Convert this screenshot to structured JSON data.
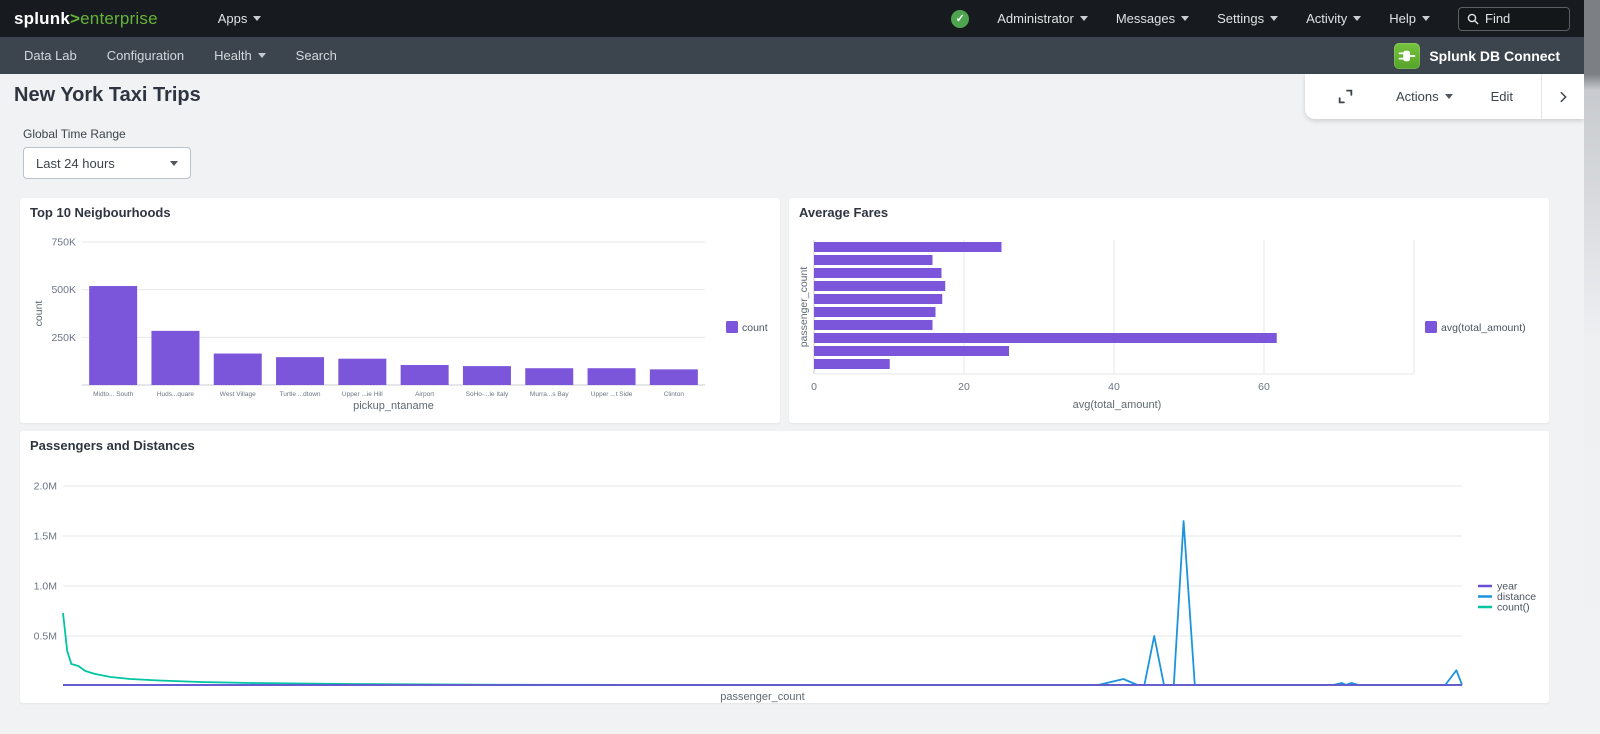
{
  "topnav": {
    "brand": {
      "name": "splunk",
      "gt": ">",
      "product": "enterprise"
    },
    "apps_label": "Apps",
    "menus": [
      {
        "label": "Administrator"
      },
      {
        "label": "Messages"
      },
      {
        "label": "Settings"
      },
      {
        "label": "Activity"
      },
      {
        "label": "Help"
      }
    ],
    "status_icon": "check-circle",
    "find_placeholder": "Find"
  },
  "appnav": {
    "items": [
      {
        "label": "Data Lab"
      },
      {
        "label": "Configuration"
      },
      {
        "label": "Health"
      },
      {
        "label": "Search"
      }
    ],
    "app_title": "Splunk DB Connect"
  },
  "toolbar": {
    "actions_label": "Actions",
    "edit_label": "Edit"
  },
  "page": {
    "title": "New York Taxi Trips",
    "time_range_label": "Global Time Range",
    "time_range_value": "Last 24 hours"
  },
  "colors": {
    "accent_purple": "#7b56db",
    "line_blue": "#1e93dd",
    "line_teal": "#00c5a2",
    "status_green": "#4ea44f",
    "brand_green": "#65b339",
    "topnav_bg": "#171a1e",
    "appnav_bg": "#3c444d",
    "page_bg": "#f0f2f4"
  },
  "chart_data": [
    {
      "type": "bar",
      "title": "Top 10 Neigbourhoods",
      "categories": [
        "Midto... South",
        "Huds...quare",
        "West Village",
        "Turtle ...dtown",
        "Upper ...ie Hill",
        "Airport",
        "SoHo-...le Italy",
        "Murra...s Bay",
        "Upper ...t Side",
        "Clinton"
      ],
      "values": [
        519000,
        284000,
        165000,
        146000,
        138000,
        105000,
        99000,
        88000,
        88000,
        82000
      ],
      "xlabel": "pickup_ntaname",
      "ylabel": "count",
      "ylim": [
        0,
        750000
      ],
      "yticks": [
        {
          "label": "750K",
          "value": 750000
        },
        {
          "label": "500K",
          "value": 500000
        },
        {
          "label": "250K",
          "value": 250000
        }
      ],
      "grid": "horizontal",
      "bar_color": "#7b56db",
      "legend": [
        {
          "label": "count",
          "color": "#7b56db"
        }
      ],
      "legend_position": "right"
    },
    {
      "type": "bar_horizontal",
      "title": "Average Fares",
      "values": [
        25,
        15.8,
        17,
        17.5,
        17.1,
        16.2,
        15.8,
        61.7,
        26,
        10.1
      ],
      "xlabel": "avg(total_amount)",
      "ylabel": "passenger_count",
      "xlim": [
        0,
        81
      ],
      "xticks": [
        {
          "label": "0",
          "value": 0
        },
        {
          "label": "20",
          "value": 20
        },
        {
          "label": "40",
          "value": 40
        },
        {
          "label": "60",
          "value": 60
        },
        {
          "label": "",
          "value": 80
        }
      ],
      "grid": "vertical",
      "bar_color": "#7b56db",
      "legend": [
        {
          "label": "avg(total_amount)",
          "color": "#7b56db"
        }
      ],
      "legend_position": "right"
    },
    {
      "type": "line",
      "title": "Passengers and Distances",
      "xlabel": "passenger_count",
      "x_axis_note": "x tick labels not shown; x given as percent of plot width",
      "ylim": [
        0,
        2000000
      ],
      "yticks": [
        {
          "label": "2.0M",
          "value": 2000000
        },
        {
          "label": "1.5M",
          "value": 1500000
        },
        {
          "label": "1.0M",
          "value": 1000000
        },
        {
          "label": "0.5M",
          "value": 500000
        }
      ],
      "grid": "horizontal",
      "legend": [
        {
          "label": "year",
          "color": "#6a50d0"
        },
        {
          "label": "distance",
          "color": "#1e93dd"
        },
        {
          "label": "count()",
          "color": "#00c5a2"
        }
      ],
      "legend_position": "right",
      "series": [
        {
          "name": "distance",
          "color": "#1e93dd",
          "points_pct": [
            [
              0,
              5000
            ],
            [
              74,
              5000
            ],
            [
              75.8,
              70000
            ],
            [
              76.8,
              5000
            ],
            [
              77.3,
              5000
            ],
            [
              78,
              500000
            ],
            [
              78.7,
              5000
            ],
            [
              79.4,
              5000
            ],
            [
              80.1,
              1650000
            ],
            [
              80.9,
              5000
            ],
            [
              90.8,
              5000
            ],
            [
              91.4,
              30000
            ],
            [
              91.7,
              12000
            ],
            [
              92.1,
              30000
            ],
            [
              92.6,
              5000
            ],
            [
              98.8,
              5000
            ],
            [
              99.6,
              157000
            ],
            [
              100,
              12000
            ]
          ]
        },
        {
          "name": "count()",
          "color": "#00c5a2",
          "points_pct": [
            [
              0,
              730000
            ],
            [
              0.3,
              350000
            ],
            [
              0.6,
              220000
            ],
            [
              1.1,
              200000
            ],
            [
              1.6,
              150000
            ],
            [
              2.3,
              120000
            ],
            [
              3.4,
              90000
            ],
            [
              4.8,
              70000
            ],
            [
              6.9,
              55000
            ],
            [
              9.8,
              40000
            ],
            [
              13.4,
              30000
            ],
            [
              20.5,
              20000
            ],
            [
              31.2,
              12000
            ],
            [
              52.7,
              6000
            ],
            [
              74,
              4000
            ],
            [
              100,
              3000
            ]
          ]
        },
        {
          "name": "year",
          "color": "#6a50d0",
          "points_pct": [
            [
              0,
              8000
            ],
            [
              100,
              8000
            ]
          ]
        }
      ]
    }
  ]
}
